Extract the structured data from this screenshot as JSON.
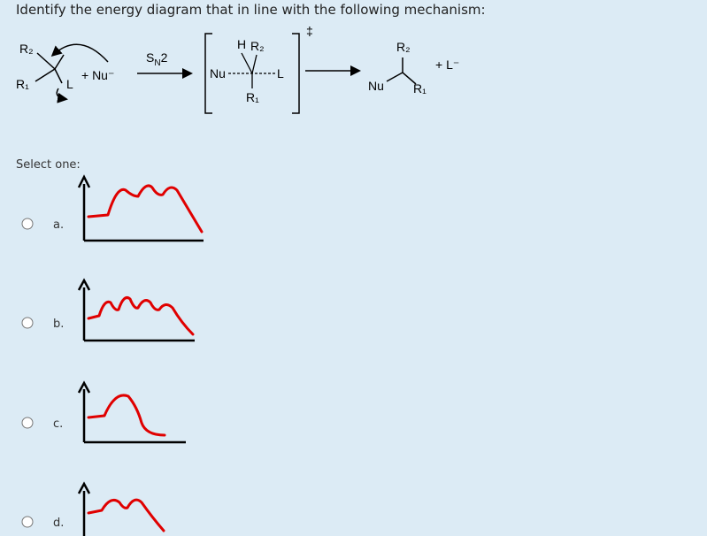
{
  "question": "Identify the energy diagram that in line with the following mechanism:",
  "mechanism": {
    "reactant": {
      "r2": "R₂",
      "r1": "R₁",
      "leaving": "L",
      "nucleophile": "+ Nu⁻"
    },
    "condition": {
      "main": "S",
      "sub": "N",
      "tail": "2"
    },
    "transition_state": {
      "h": "H",
      "r2": "R₂",
      "nu": "Nu",
      "leaving": "L",
      "r1": "R₁",
      "symbol": "‡"
    },
    "product": {
      "r2": "R₂",
      "nu": "Nu",
      "r1": "R₁",
      "byproduct": "+ L⁻"
    }
  },
  "prompt": "Select one:",
  "options": [
    {
      "label": "a."
    },
    {
      "label": "b."
    },
    {
      "label": "c."
    },
    {
      "label": "d."
    }
  ]
}
